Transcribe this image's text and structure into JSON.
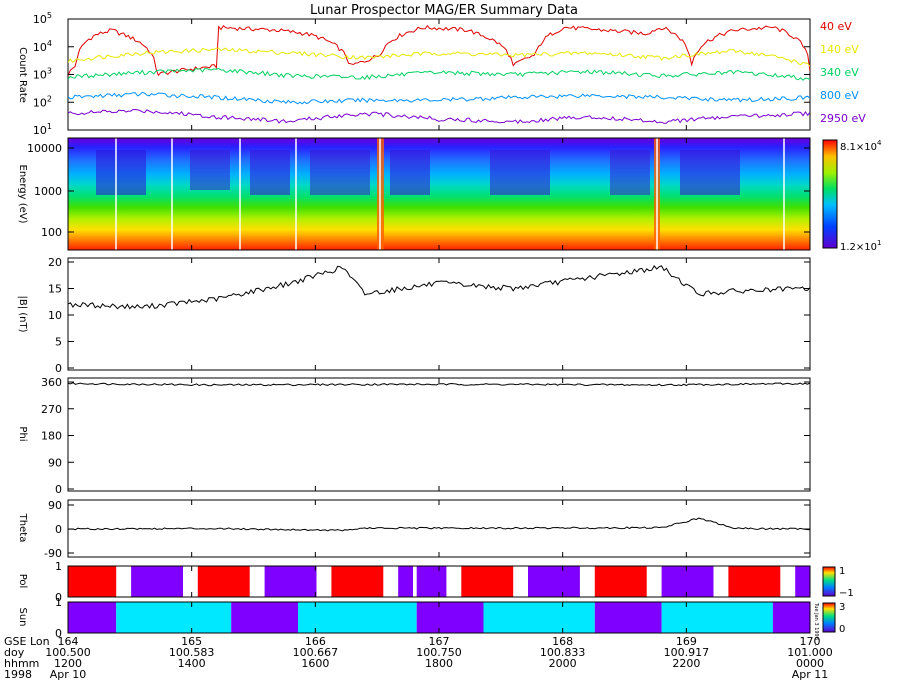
{
  "title": "Lunar Prospector MAG/ER Summary Data",
  "colors": {
    "red": "#e00000",
    "yellow": "#e8e800",
    "green": "#00d060",
    "blue": "#0090ff",
    "purple": "#7a00d0",
    "cyan": "#00e8ff",
    "pol_red": "#ff0000",
    "pol_purple": "#8000ff"
  },
  "chart_data": [
    {
      "type": "line",
      "ylabel": "Count Rate",
      "yscale": "log",
      "ylim": [
        10,
        100000
      ],
      "ytick_base": "10",
      "ytick_exponents": [
        "1",
        "2",
        "3",
        "4",
        "5"
      ],
      "xlim": [
        0,
        1
      ],
      "series": [
        {
          "name": "40 eV",
          "color": "#e00000",
          "x": [
            0,
            0.01,
            0.035,
            0.06,
            0.07,
            0.12,
            0.2,
            0.2,
            0.28,
            0.32,
            0.38,
            0.4,
            0.42,
            0.48,
            0.54,
            0.55,
            0.6,
            0.63,
            0.67,
            0.72,
            0.78,
            0.8,
            0.84,
            0.9,
            0.95,
            1.0
          ],
          "y": [
            1000,
            2000,
            25000,
            40000,
            30000,
            1000,
            2000,
            50000,
            40000,
            30000,
            2000,
            3000,
            5000,
            50000,
            40000,
            30000,
            2000,
            5000,
            50000,
            40000,
            30000,
            50000,
            2000,
            40000,
            50000,
            1500
          ]
        },
        {
          "name": "140 eV",
          "color": "#e8e800",
          "x": [
            0,
            0.1,
            0.2,
            0.3,
            0.4,
            0.5,
            0.6,
            0.7,
            0.8,
            0.9,
            1.0
          ],
          "y": [
            3000,
            6000,
            8000,
            6000,
            4000,
            6000,
            5000,
            6000,
            4000,
            7000,
            2000
          ]
        },
        {
          "name": "340 eV",
          "color": "#00d060",
          "x": [
            0,
            0.1,
            0.2,
            0.3,
            0.4,
            0.5,
            0.6,
            0.7,
            0.8,
            0.9,
            1.0
          ],
          "y": [
            800,
            1200,
            1500,
            900,
            800,
            1200,
            1000,
            1300,
            900,
            1200,
            700
          ]
        },
        {
          "name": "800 eV",
          "color": "#0090ff",
          "x": [
            0,
            0.1,
            0.2,
            0.3,
            0.4,
            0.5,
            0.6,
            0.7,
            0.8,
            0.9,
            1.0
          ],
          "y": [
            150,
            200,
            150,
            100,
            120,
            120,
            150,
            180,
            150,
            120,
            150
          ]
        },
        {
          "name": "2950 eV",
          "color": "#7a00d0",
          "x": [
            0,
            0.1,
            0.2,
            0.3,
            0.4,
            0.5,
            0.6,
            0.7,
            0.8,
            0.9,
            1.0
          ],
          "y": [
            40,
            50,
            30,
            20,
            40,
            25,
            20,
            30,
            20,
            30,
            40
          ]
        }
      ]
    },
    {
      "type": "heatmap",
      "ylabel": "Energy (eV)",
      "yticks": [
        "100",
        "1000",
        "10000"
      ],
      "colorbar_max_base": "8.1×10",
      "colorbar_max_exp": "4",
      "colorbar_min_base": "1.2×10",
      "colorbar_min_exp": "1"
    },
    {
      "type": "line",
      "ylabel": "|B| (nT)",
      "ylim": [
        0,
        20
      ],
      "yticks": [
        "0",
        "5",
        "10",
        "15",
        "20"
      ],
      "x": [
        0,
        0.1,
        0.2,
        0.3,
        0.37,
        0.4,
        0.5,
        0.6,
        0.7,
        0.8,
        0.85,
        0.9,
        1.0
      ],
      "y": [
        12,
        11.5,
        13,
        16,
        19,
        14,
        16,
        15,
        17,
        19,
        14,
        14.5,
        15
      ]
    },
    {
      "type": "line",
      "ylabel": "Phi",
      "ylim": [
        0,
        360
      ],
      "yticks": [
        "0",
        "90",
        "180",
        "270",
        "360"
      ],
      "x": [
        0,
        0.2,
        0.4,
        0.6,
        0.8,
        1.0
      ],
      "y": [
        355,
        350,
        352,
        352,
        350,
        355
      ]
    },
    {
      "type": "line",
      "ylabel": "Theta",
      "ylim": [
        -90,
        90
      ],
      "yticks": [
        "-90",
        "0",
        "90"
      ],
      "x": [
        0,
        0.2,
        0.37,
        0.4,
        0.6,
        0.8,
        0.85,
        0.9,
        1.0
      ],
      "y": [
        0,
        2,
        -5,
        3,
        3,
        5,
        40,
        2,
        0
      ]
    },
    {
      "type": "bar",
      "ylabel": "Pol",
      "yticks": [
        "0",
        "1"
      ],
      "colorbar_labels": [
        "1",
        "−1"
      ],
      "segments": [
        {
          "start": 0.0,
          "end": 0.065,
          "color": "#ff0000"
        },
        {
          "start": 0.085,
          "end": 0.155,
          "color": "#8000ff"
        },
        {
          "start": 0.175,
          "end": 0.245,
          "color": "#ff0000"
        },
        {
          "start": 0.265,
          "end": 0.335,
          "color": "#8000ff"
        },
        {
          "start": 0.355,
          "end": 0.425,
          "color": "#ff0000"
        },
        {
          "start": 0.445,
          "end": 0.465,
          "color": "#8000ff"
        },
        {
          "start": 0.47,
          "end": 0.51,
          "color": "#8000ff"
        },
        {
          "start": 0.53,
          "end": 0.6,
          "color": "#ff0000"
        },
        {
          "start": 0.62,
          "end": 0.69,
          "color": "#8000ff"
        },
        {
          "start": 0.71,
          "end": 0.78,
          "color": "#ff0000"
        },
        {
          "start": 0.8,
          "end": 0.87,
          "color": "#8000ff"
        },
        {
          "start": 0.89,
          "end": 0.96,
          "color": "#ff0000"
        },
        {
          "start": 0.98,
          "end": 1.0,
          "color": "#8000ff"
        }
      ]
    },
    {
      "type": "bar",
      "ylabel": "Sun",
      "yticks": [
        "0",
        "1"
      ],
      "colorbar_labels": [
        "3",
        "0"
      ],
      "colorbar_note": "Tue Jan 3 1998 ...",
      "segments": [
        {
          "start": 0.0,
          "end": 0.065,
          "color": "#8000ff"
        },
        {
          "start": 0.065,
          "end": 0.22,
          "color": "#00e8ff"
        },
        {
          "start": 0.22,
          "end": 0.31,
          "color": "#8000ff"
        },
        {
          "start": 0.31,
          "end": 0.47,
          "color": "#00e8ff"
        },
        {
          "start": 0.47,
          "end": 0.56,
          "color": "#8000ff"
        },
        {
          "start": 0.56,
          "end": 0.71,
          "color": "#00e8ff"
        },
        {
          "start": 0.71,
          "end": 0.8,
          "color": "#8000ff"
        },
        {
          "start": 0.8,
          "end": 0.95,
          "color": "#00e8ff"
        },
        {
          "start": 0.95,
          "end": 1.0,
          "color": "#8000ff"
        }
      ]
    }
  ],
  "x_axis": {
    "row_labels": [
      "GSE Lon",
      "doy",
      "hhmm",
      "1998"
    ],
    "ticks": [
      {
        "lon": "164",
        "doy": "100.500",
        "hhmm": "1200",
        "date": "Apr 10"
      },
      {
        "lon": "165",
        "doy": "100.583",
        "hhmm": "1400",
        "date": ""
      },
      {
        "lon": "166",
        "doy": "100.667",
        "hhmm": "1600",
        "date": ""
      },
      {
        "lon": "167",
        "doy": "100.750",
        "hhmm": "1800",
        "date": ""
      },
      {
        "lon": "168",
        "doy": "100.833",
        "hhmm": "2000",
        "date": ""
      },
      {
        "lon": "169",
        "doy": "100.917",
        "hhmm": "2200",
        "date": ""
      },
      {
        "lon": "170",
        "doy": "101.000",
        "hhmm": "0000",
        "date": "Apr 11"
      }
    ]
  }
}
